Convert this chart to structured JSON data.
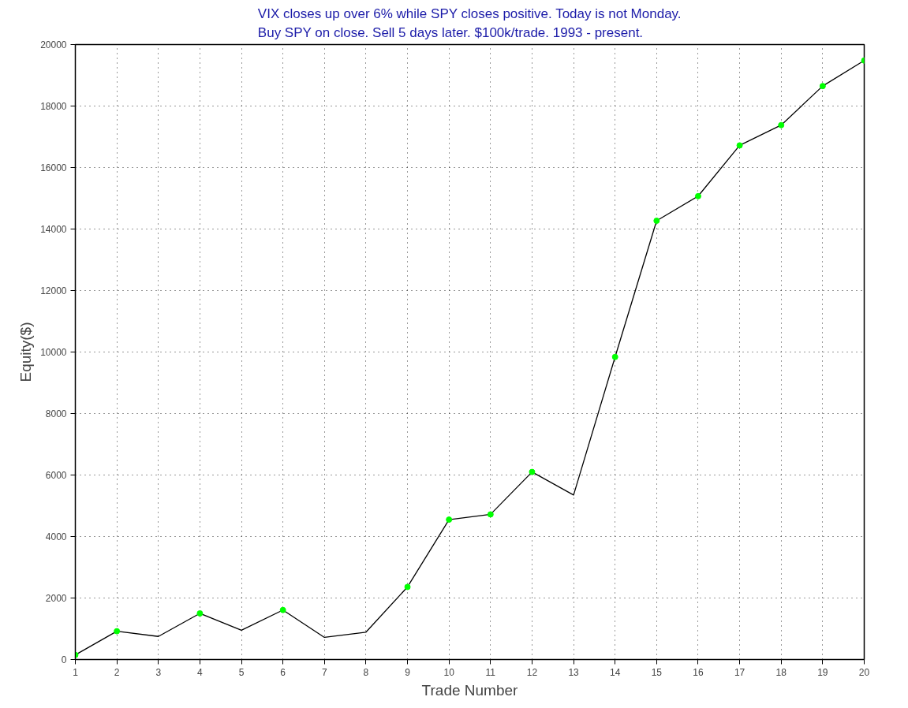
{
  "chart_data": {
    "type": "line",
    "title": "VIX closes up over 6% while SPY closes positive. Today is not Monday.\nBuy SPY on close. Sell 5 days later. $100k/trade. 1993 - present.",
    "xlabel": "Trade Number",
    "ylabel": "Equity($)",
    "x": [
      1,
      2,
      3,
      4,
      5,
      6,
      7,
      8,
      9,
      10,
      11,
      12,
      13,
      14,
      15,
      16,
      17,
      18,
      19,
      20
    ],
    "series": [
      {
        "color": "#000000",
        "marker": "none",
        "values": [
          150,
          920,
          750,
          1500,
          950,
          1610,
          720,
          890,
          2360,
          4550,
          4720,
          6100,
          5350,
          9840,
          14270,
          15070,
          16720,
          17380,
          18650,
          19480
        ]
      },
      {
        "type": "scatter",
        "color": "#00ff00",
        "marker": "circle",
        "x": [
          1,
          2,
          4,
          6,
          9,
          10,
          11,
          12,
          14,
          15,
          16,
          17,
          18,
          19,
          20
        ],
        "values": [
          150,
          920,
          1500,
          1610,
          2360,
          4550,
          4720,
          6100,
          9840,
          14270,
          15070,
          16720,
          17380,
          18650,
          19480
        ]
      }
    ],
    "xlim": [
      1,
      20
    ],
    "xticks": [
      1,
      2,
      3,
      4,
      5,
      6,
      7,
      8,
      9,
      10,
      11,
      12,
      13,
      14,
      15,
      16,
      17,
      18,
      19,
      20
    ],
    "ylim": [
      0,
      20000
    ],
    "yticks": [
      0,
      2000,
      4000,
      6000,
      8000,
      10000,
      12000,
      14000,
      16000,
      18000,
      20000
    ],
    "grid": true
  }
}
